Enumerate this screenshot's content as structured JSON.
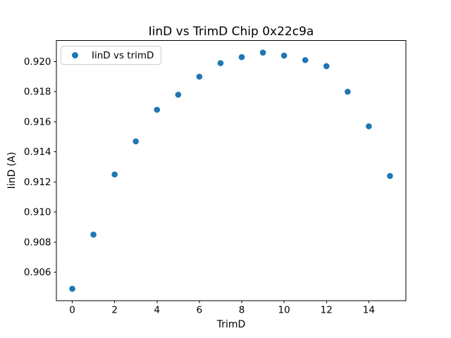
{
  "figure": {
    "background": "#ffffff",
    "text_color": "#000000",
    "spine_color": "#000000",
    "legend_border_color": "#cccccc"
  },
  "chart_data": {
    "type": "scatter",
    "title": "IinD vs TrimD Chip 0x22c9a",
    "xlabel": "TrimD",
    "ylabel": "IinD (A)",
    "legend": {
      "label": "IinD vs trimD",
      "position": "upper left"
    },
    "marker_color": "#1f77b4",
    "marker_shape": "circle",
    "grid": false,
    "x": [
      0,
      1,
      2,
      3,
      4,
      5,
      6,
      7,
      8,
      9,
      10,
      11,
      12,
      13,
      14,
      15
    ],
    "y": [
      0.9049,
      0.9085,
      0.9125,
      0.9147,
      0.9168,
      0.9178,
      0.919,
      0.9199,
      0.9203,
      0.9206,
      0.9204,
      0.9201,
      0.9197,
      0.918,
      0.9157,
      0.9124
    ],
    "xlim": [
      -0.75,
      15.75
    ],
    "ylim": [
      0.9041,
      0.9214
    ],
    "xticks": [
      0,
      2,
      4,
      6,
      8,
      10,
      12,
      14
    ],
    "yticks": [
      0.906,
      0.908,
      0.91,
      0.912,
      0.914,
      0.916,
      0.918,
      0.92
    ]
  }
}
